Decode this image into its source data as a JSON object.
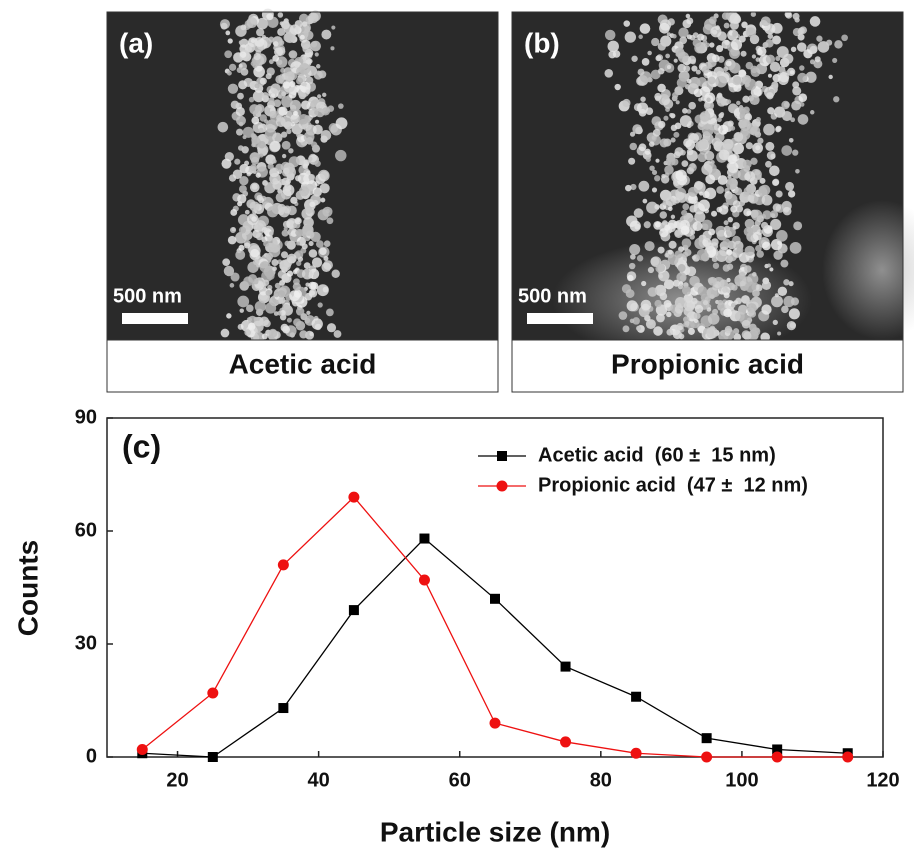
{
  "panels": [
    {
      "label": "(a)",
      "scale": "500 nm",
      "caption": "Acetic acid"
    },
    {
      "label": "(b)",
      "scale": "500 nm",
      "caption": "Propionic acid"
    }
  ],
  "chart_data": {
    "type": "line",
    "annotation": "(c)",
    "x_label": "Particle size (nm)",
    "y_label": "Counts",
    "x": [
      15,
      25,
      35,
      45,
      55,
      65,
      75,
      85,
      95,
      105,
      115
    ],
    "series": [
      {
        "name": "Acetic acid  (60 ±  15 nm)",
        "color": "#000000",
        "marker": "square",
        "values": [
          1,
          0,
          13,
          39,
          58,
          42,
          24,
          16,
          5,
          2,
          1
        ]
      },
      {
        "name": "Propionic acid  (47 ±  12 nm)",
        "color": "#ee1111",
        "marker": "circle",
        "values": [
          2,
          17,
          51,
          69,
          47,
          9,
          4,
          1,
          0,
          0,
          0
        ]
      }
    ],
    "xlim": [
      10,
      120
    ],
    "xticks": [
      20,
      40,
      60,
      80,
      100,
      120
    ],
    "ylim": [
      0,
      90
    ],
    "yticks": [
      0,
      30,
      60,
      90
    ],
    "legend": "upper right"
  }
}
